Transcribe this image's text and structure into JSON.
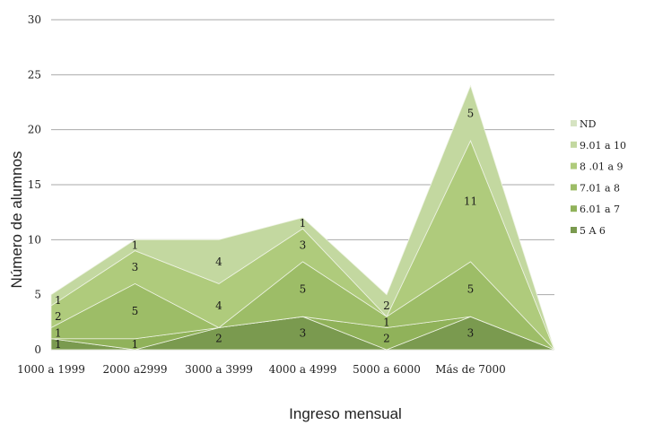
{
  "chart_data": {
    "type": "area",
    "stacked": true,
    "xlabel": "Ingreso mensual",
    "ylabel": "Número de alumnos",
    "ylim": [
      0,
      30
    ],
    "yticks": [
      "0",
      "5",
      "10",
      "15",
      "20",
      "25",
      "30"
    ],
    "grid": "horizontal",
    "legend_position": "right",
    "categories": [
      "1000 a 1999",
      "2000 a2999",
      "3000 a 3999",
      "4000 a 4999",
      "5000 a 6000",
      "Más de 7000",
      ""
    ],
    "series": [
      {
        "name": "5 A 6",
        "color": "#7a9a4f",
        "values": [
          1,
          0,
          2,
          3,
          0,
          3,
          0
        ],
        "labels": [
          "1",
          "",
          "2",
          "3",
          "",
          "3",
          ""
        ]
      },
      {
        "name": "6.01 a 7",
        "color": "#90b25a",
        "values": [
          0,
          1,
          0,
          0,
          2,
          0,
          0
        ],
        "labels": [
          "",
          "1",
          "",
          "",
          "2",
          "",
          ""
        ]
      },
      {
        "name": "7.01 a 8",
        "color": "#9dbd67",
        "values": [
          1,
          5,
          0,
          5,
          1,
          5,
          0
        ],
        "labels": [
          "1",
          "5",
          "",
          "5",
          "1",
          "5",
          ""
        ]
      },
      {
        "name": "8 .01 a 9",
        "color": "#afcb7c",
        "values": [
          2,
          3,
          4,
          3,
          0,
          11,
          0
        ],
        "labels": [
          "2",
          "3",
          "4",
          "3",
          "",
          "11",
          ""
        ]
      },
      {
        "name": "9.01 a 10",
        "color": "#c3d8a0",
        "values": [
          1,
          1,
          4,
          1,
          2,
          5,
          0
        ],
        "labels": [
          "1",
          "1",
          "4",
          "1",
          "2",
          "5",
          ""
        ]
      },
      {
        "name": "ND",
        "color": "#d6e3c2",
        "values": [
          0,
          0,
          0,
          0,
          0,
          0,
          0
        ],
        "labels": [
          "",
          "",
          "",
          "",
          "",
          "",
          ""
        ]
      }
    ]
  }
}
